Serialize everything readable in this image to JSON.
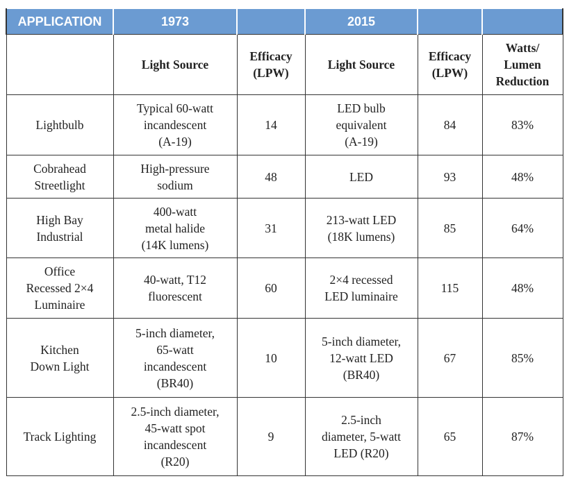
{
  "header": {
    "application": "APPLICATION",
    "period_1": "1973",
    "period_2": "2015"
  },
  "columns": [
    [
      "Light Source"
    ],
    [
      "Efficacy",
      "(LPW)"
    ],
    [
      "Light Source"
    ],
    [
      "Efficacy",
      "(LPW)"
    ],
    [
      "Watts/",
      "Lumen",
      "Reduction"
    ]
  ],
  "rows": [
    [
      [
        "Lightbulb"
      ],
      [
        "Typical 60-watt",
        "incandescent",
        "(A-19)"
      ],
      [
        "14"
      ],
      [
        "LED bulb",
        "equivalent",
        "(A-19)"
      ],
      [
        "84"
      ],
      [
        "83%"
      ]
    ],
    [
      [
        "Cobrahead",
        "Streetlight"
      ],
      [
        "High-pressure",
        "sodium"
      ],
      [
        "48"
      ],
      [
        "LED"
      ],
      [
        "93"
      ],
      [
        "48%"
      ]
    ],
    [
      [
        "High Bay",
        "Industrial"
      ],
      [
        "400-watt",
        "metal halide",
        "(14K lumens)"
      ],
      [
        "31"
      ],
      [
        "213-watt LED",
        "(18K lumens)"
      ],
      [
        "85"
      ],
      [
        "64%"
      ]
    ],
    [
      [
        "Office",
        "Recessed 2×4",
        "Luminaire"
      ],
      [
        "40-watt, T12",
        "fluorescent"
      ],
      [
        "60"
      ],
      [
        "2×4 recessed",
        "LED luminaire"
      ],
      [
        "115"
      ],
      [
        "48%"
      ]
    ],
    [
      [
        "Kitchen",
        "Down Light"
      ],
      [
        "5-inch diameter,",
        "65-watt",
        "incandescent",
        "(BR40)"
      ],
      [
        "10"
      ],
      [
        "5-inch diameter,",
        "12-watt LED",
        "(BR40)"
      ],
      [
        "67"
      ],
      [
        "85%"
      ]
    ],
    [
      [
        "Track Lighting"
      ],
      [
        "2.5-inch diameter,",
        "45-watt spot",
        "incandescent",
        "(R20)"
      ],
      [
        "9"
      ],
      [
        "2.5-inch",
        "diameter, 5-watt",
        "LED (R20)"
      ],
      [
        "65"
      ],
      [
        "87%"
      ]
    ]
  ]
}
